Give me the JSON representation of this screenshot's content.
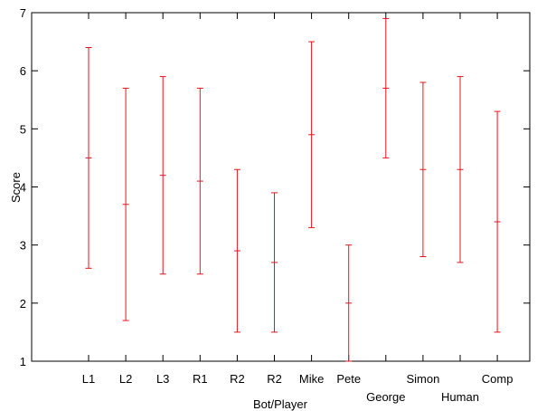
{
  "chart_data": {
    "type": "errorbar",
    "xlabel": "Bot/Player",
    "ylabel": "Score",
    "ylim": [
      1,
      7
    ],
    "yticks": [
      1,
      2,
      3,
      4,
      5,
      6,
      7
    ],
    "grid": false,
    "legend": "none",
    "color": "#e8141c",
    "categories": [
      "L1",
      "L2",
      "L3",
      "R1",
      "R2",
      "R2",
      "Mike",
      "Pete",
      "George",
      "Simon",
      "Human",
      "Comp"
    ],
    "label_row": [
      0,
      0,
      0,
      0,
      0,
      0,
      0,
      0,
      1,
      0,
      1,
      0
    ],
    "mean": [
      4.5,
      3.7,
      4.2,
      4.1,
      2.9,
      2.7,
      4.9,
      2.0,
      5.7,
      4.3,
      4.3,
      3.4
    ],
    "lower": [
      2.6,
      1.7,
      2.5,
      2.5,
      1.5,
      1.5,
      3.3,
      1.0,
      4.5,
      2.8,
      2.7,
      1.5
    ],
    "upper": [
      6.4,
      5.7,
      5.9,
      5.7,
      4.3,
      3.9,
      6.5,
      3.0,
      6.9,
      5.8,
      5.9,
      5.3
    ]
  }
}
